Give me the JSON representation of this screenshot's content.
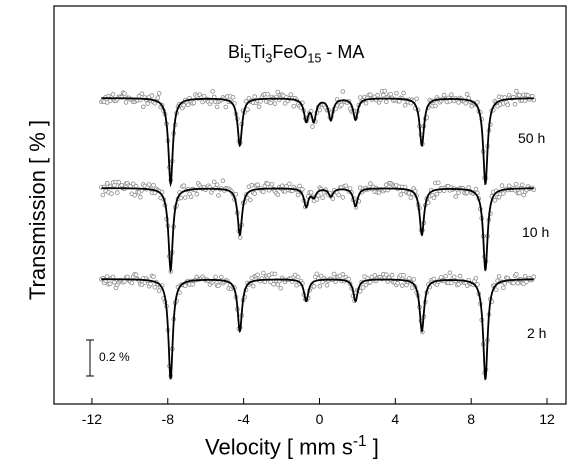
{
  "chart_data": {
    "type": "scatter",
    "title": {
      "main": "Bi",
      "s1": "5",
      "t1": "Ti",
      "s2": "3",
      "t2": "FeO",
      "s3": "15",
      "t3": " - MA"
    },
    "xlabel": {
      "pre": "Velocity [ mm s",
      "sup": "-1",
      "post": " ]"
    },
    "ylabel": "Transmission [ % ]",
    "xlim": [
      -14,
      13
    ],
    "xticks": [
      -12,
      -8,
      -4,
      0,
      4,
      8,
      12
    ],
    "scale_bar_label": "0.2 %",
    "series": [
      {
        "name": "50 h",
        "sextet_lines": [
          -7.85,
          -4.2,
          -0.7,
          1.9,
          5.4,
          8.75
        ],
        "sextet_depths": [
          1.0,
          0.55,
          0.25,
          0.25,
          0.55,
          1.0
        ],
        "doublet_lines": [
          -0.3,
          0.6
        ],
        "doublet_depths": [
          0.25,
          0.25
        ]
      },
      {
        "name": "10 h",
        "sextet_lines": [
          -7.85,
          -4.2,
          -0.7,
          1.9,
          5.4,
          8.75
        ],
        "sextet_depths": [
          1.0,
          0.57,
          0.22,
          0.22,
          0.57,
          1.0
        ],
        "doublet_lines": [
          -0.3,
          0.6
        ],
        "doublet_depths": [
          0.1,
          0.1
        ]
      },
      {
        "name": "2 h",
        "sextet_lines": [
          -7.85,
          -4.2,
          -0.7,
          1.9,
          5.4,
          8.75
        ],
        "sextet_depths": [
          1.0,
          0.52,
          0.22,
          0.22,
          0.52,
          1.0
        ],
        "doublet_lines": [],
        "doublet_depths": []
      }
    ],
    "grid": false,
    "marker": "open-circle",
    "fit_line_color": "#000000",
    "point_color": "#8c8c8c"
  }
}
